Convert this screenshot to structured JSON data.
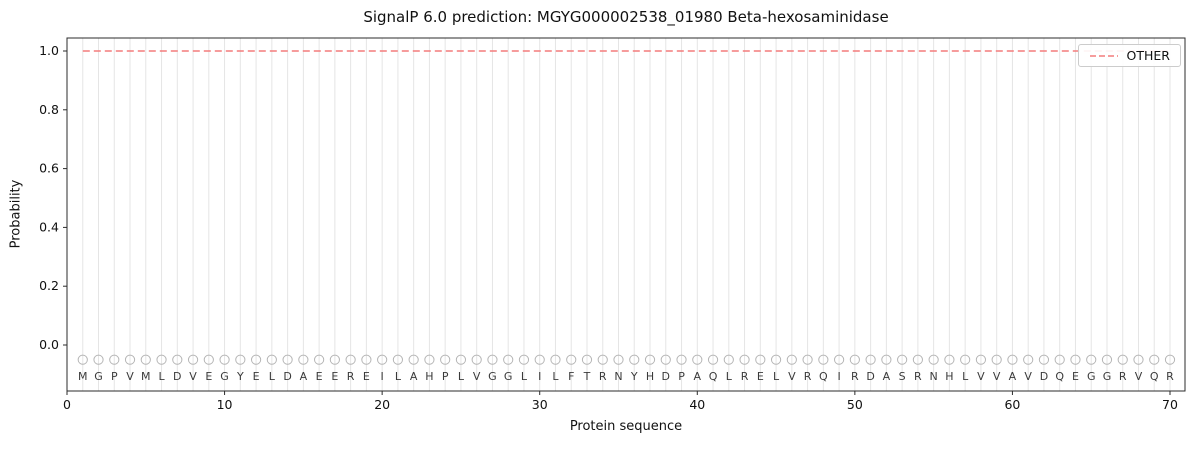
{
  "chart_data": {
    "type": "line",
    "title": "SignalP 6.0 prediction: MGYG000002538_01980 Beta-hexosaminidase",
    "xlabel": "Protein sequence",
    "ylabel": "Probability",
    "x_ticks": [
      0,
      10,
      20,
      30,
      40,
      50,
      60,
      70
    ],
    "y_ticks": [
      "0.0",
      "0.2",
      "0.4",
      "0.6",
      "0.8",
      "1.0"
    ],
    "xlim": [
      0,
      71
    ],
    "ylim": [
      -0.156,
      1.044
    ],
    "grid": "vertical-per-residue",
    "legend_position": "upper right",
    "sequence": "MGPVMLDVEGYELDAEEREILAHPLVGGLILFTRNYHDPAQLRELVRQIRDASRNHLVVAVDQEGGRVQR",
    "marker_y": -0.05,
    "series": [
      {
        "name": "OTHER",
        "color": "#f47c7c",
        "linestyle": "dashed",
        "x_start": 1,
        "x_end": 70,
        "values": [
          1,
          1,
          1,
          1,
          1,
          1,
          1,
          1,
          1,
          1,
          1,
          1,
          1,
          1,
          1,
          1,
          1,
          1,
          1,
          1,
          1,
          1,
          1,
          1,
          1,
          1,
          1,
          1,
          1,
          1,
          1,
          1,
          1,
          1,
          1,
          1,
          1,
          1,
          1,
          1,
          1,
          1,
          1,
          1,
          1,
          1,
          1,
          1,
          1,
          1,
          1,
          1,
          1,
          1,
          1,
          1,
          1,
          1,
          1,
          1,
          1,
          1,
          1,
          1,
          1,
          1,
          1,
          1,
          1,
          1
        ]
      }
    ]
  }
}
